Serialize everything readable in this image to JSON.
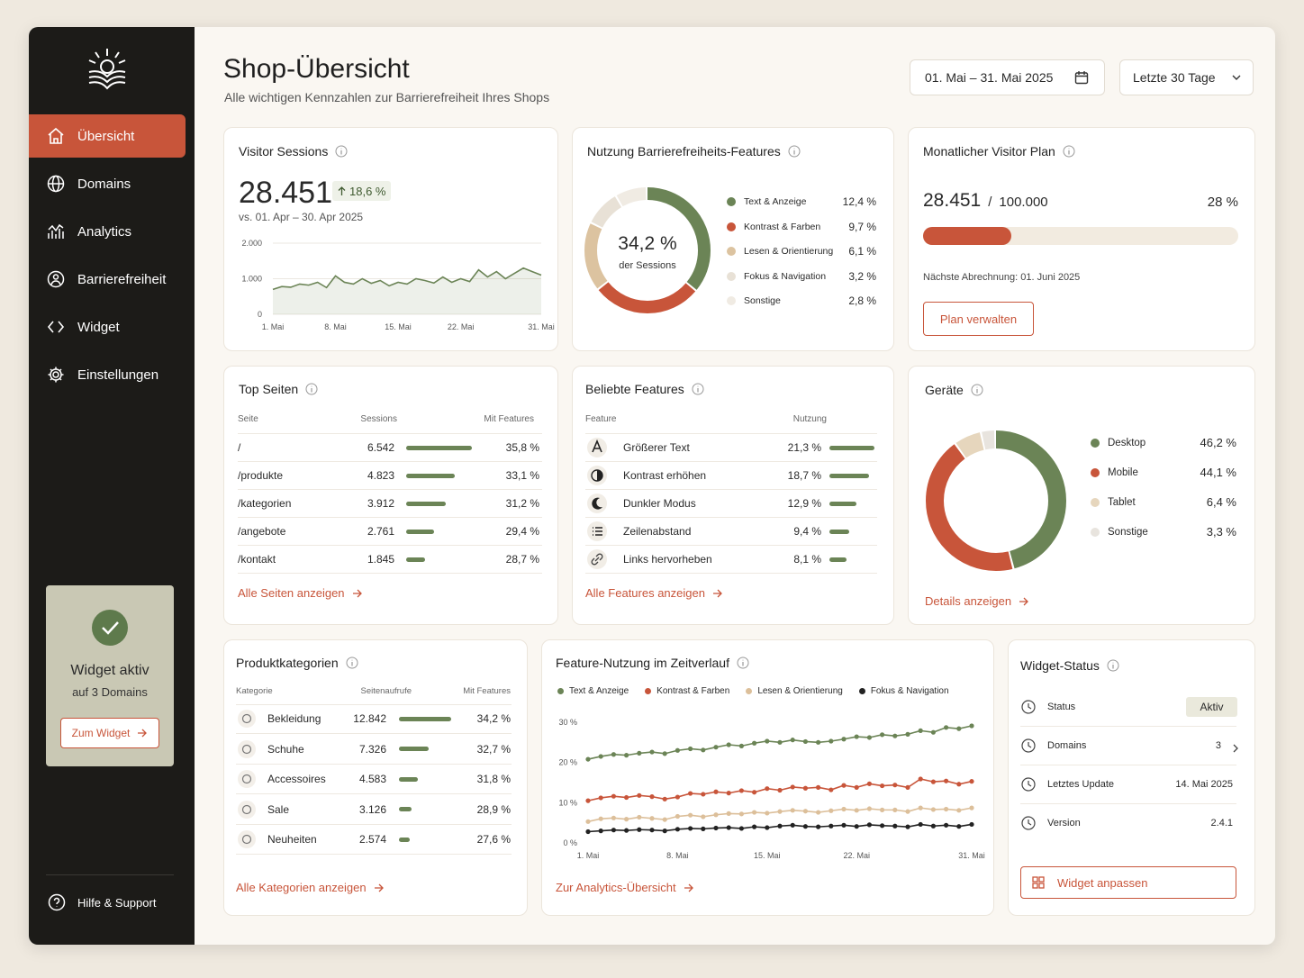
{
  "sidebar": {
    "nav": [
      "Übersicht",
      "Domains",
      "Analytics",
      "Barrierefreiheit",
      "Widget",
      "Einstellungen"
    ],
    "widget_card": {
      "title": "Widget aktiv",
      "subtitle": "auf 3 Domains",
      "button": "Zum Widget"
    },
    "help": "Hilfe & Support"
  },
  "header": {
    "title": "Shop-Übersicht",
    "subtitle": "Alle wichtigen Kennzahlen zur Barrierefreiheit Ihres Shops",
    "date_range": "01. Mai – 31. Mai 2025",
    "period": "Letzte 30 Tage"
  },
  "visitor_sessions": {
    "title": "Visitor Sessions",
    "value": "28.451",
    "change": "18,6 %",
    "comparison": "vs. 01. Apr – 30. Apr 2025",
    "chart_data": {
      "type": "area",
      "categories": [
        "1. Mai",
        null,
        null,
        null,
        null,
        null,
        null,
        "8. Mai",
        null,
        null,
        null,
        null,
        null,
        null,
        "15. Mai",
        null,
        null,
        null,
        null,
        null,
        null,
        "22. Mai",
        null,
        null,
        null,
        null,
        null,
        null,
        null,
        null,
        "31. Mai"
      ],
      "values": [
        700,
        780,
        760,
        850,
        820,
        900,
        750,
        1080,
        900,
        850,
        1000,
        870,
        950,
        800,
        900,
        850,
        1000,
        950,
        880,
        1050,
        900,
        1000,
        920,
        1250,
        1050,
        1200,
        1000,
        1150,
        1300,
        1200,
        1100
      ],
      "color": "#6b8456",
      "ylim": [
        0,
        2000
      ],
      "yticks": [
        0,
        {
          "value": 1000,
          "label": "1.000"
        },
        {
          "value": 2000,
          "label": "2.000"
        }
      ],
      "grid": true
    }
  },
  "feature_usage": {
    "title": "Nutzung Barrierefreiheits-Features",
    "center_value": "34,2 %",
    "center_label": "der Sessions",
    "chart_data": {
      "type": "donut",
      "categories": [
        "Text & Anzeige",
        "Kontrast & Farben",
        "Lesen & Orientierung",
        "Fokus & Navigation",
        "Sonstige"
      ],
      "values": [
        12.4,
        9.7,
        6.1,
        3.2,
        2.8
      ],
      "value_labels": [
        "12,4 %",
        "9,7 %",
        "6,1 %",
        "3,2 %",
        "2,8 %"
      ],
      "colors": [
        "#6b8456",
        "#c8553a",
        "#dcc3a0",
        "#e8e1d6",
        "#f0ebe3"
      ]
    }
  },
  "visitor_plan": {
    "title": "Monatlicher Visitor Plan",
    "used": "28.451",
    "separator": "/",
    "limit": "100.000",
    "chart_data": {
      "type": "progress",
      "values": [
        28
      ],
      "value_labels": [
        "28 %"
      ],
      "xlim": [
        0,
        100
      ],
      "color": "#c8553a"
    },
    "billing": "Nächste Abrechnung: 01. Juni 2025",
    "button": "Plan verwalten"
  },
  "top_pages": {
    "title": "Top Seiten",
    "columns": [
      "Seite",
      "Sessions",
      "Mit Features"
    ],
    "rows": [
      {
        "page": "/",
        "sessions": 6542,
        "sessions_label": "6.542",
        "features": 35.8,
        "features_label": "35,8 %"
      },
      {
        "page": "/produkte",
        "sessions": 4823,
        "sessions_label": "4.823",
        "features": 33.1,
        "features_label": "33,1 %"
      },
      {
        "page": "/kategorien",
        "sessions": 3912,
        "sessions_label": "3.912",
        "features": 31.2,
        "features_label": "31,2 %"
      },
      {
        "page": "/angebote",
        "sessions": 2761,
        "sessions_label": "2.761",
        "features": 29.4,
        "features_label": "29,4 %"
      },
      {
        "page": "/kontakt",
        "sessions": 1845,
        "sessions_label": "1.845",
        "features": 28.7,
        "features_label": "28,7 %"
      }
    ],
    "link": "Alle Seiten anzeigen"
  },
  "popular_features": {
    "title": "Beliebte Features",
    "columns": [
      "Feature",
      "Nutzung"
    ],
    "rows": [
      {
        "name": "Größerer Text",
        "usage": 21.3,
        "usage_label": "21,3 %"
      },
      {
        "name": "Kontrast erhöhen",
        "usage": 18.7,
        "usage_label": "18,7 %"
      },
      {
        "name": "Dunkler Modus",
        "usage": 12.9,
        "usage_label": "12,9 %"
      },
      {
        "name": "Zeilenabstand",
        "usage": 9.4,
        "usage_label": "9,4 %"
      },
      {
        "name": "Links hervorheben",
        "usage": 8.1,
        "usage_label": "8,1 %"
      }
    ],
    "link": "Alle Features anzeigen"
  },
  "devices": {
    "title": "Geräte",
    "chart_data": {
      "type": "donut",
      "categories": [
        "Desktop",
        "Mobile",
        "Tablet",
        "Sonstige"
      ],
      "values": [
        46.2,
        44.1,
        6.4,
        3.3
      ],
      "value_labels": [
        "46,2 %",
        "44,1 %",
        "6,4 %",
        "3,3 %"
      ],
      "colors": [
        "#6b8456",
        "#c8553a",
        "#e6d6bd",
        "#e8e4de"
      ]
    },
    "link": "Details anzeigen"
  },
  "product_categories": {
    "title": "Produktkategorien",
    "columns": [
      "Kategorie",
      "Seitenaufrufe",
      "Mit Features"
    ],
    "rows": [
      {
        "name": "Bekleidung",
        "views": 12842,
        "views_label": "12.842",
        "features": 34.2,
        "features_label": "34,2 %"
      },
      {
        "name": "Schuhe",
        "views": 7326,
        "views_label": "7.326",
        "features": 32.7,
        "features_label": "32,7 %"
      },
      {
        "name": "Accessoires",
        "views": 4583,
        "views_label": "4.583",
        "features": 31.8,
        "features_label": "31,8 %"
      },
      {
        "name": "Sale",
        "views": 3126,
        "views_label": "3.126",
        "features": 28.9,
        "features_label": "28,9 %"
      },
      {
        "name": "Neuheiten",
        "views": 2574,
        "views_label": "2.574",
        "features": 27.6,
        "features_label": "27,6 %"
      }
    ],
    "link": "Alle Kategorien anzeigen"
  },
  "trend": {
    "title": "Feature-Nutzung im Zeitverlauf",
    "chart_data": {
      "type": "line",
      "categories": [
        "1. Mai",
        null,
        null,
        null,
        null,
        null,
        null,
        "8. Mai",
        null,
        null,
        null,
        null,
        null,
        null,
        "15. Mai",
        null,
        null,
        null,
        null,
        null,
        null,
        "22. Mai",
        null,
        null,
        null,
        null,
        null,
        null,
        null,
        null,
        "31. Mai"
      ],
      "series": [
        {
          "name": "Text & Anzeige",
          "color": "#6b8456",
          "values": [
            20.8,
            21.5,
            22,
            21.8,
            22.3,
            22.6,
            22.2,
            23,
            23.4,
            23.1,
            23.8,
            24.4,
            24.1,
            24.8,
            25.3,
            25,
            25.6,
            25.2,
            25,
            25.3,
            25.8,
            26.4,
            26.2,
            26.9,
            26.6,
            27,
            27.9,
            27.5,
            28.7,
            28.4,
            29.1
          ]
        },
        {
          "name": "Kontrast & Farben",
          "color": "#c8553a",
          "values": [
            10.5,
            11.2,
            11.6,
            11.3,
            11.8,
            11.5,
            10.9,
            11.4,
            12.3,
            12.1,
            12.7,
            12.4,
            13,
            12.6,
            13.5,
            13.1,
            13.9,
            13.6,
            13.8,
            13.2,
            14.3,
            13.8,
            14.7,
            14.2,
            14.4,
            13.8,
            15.9,
            15.2,
            15.4,
            14.6,
            15.3
          ]
        },
        {
          "name": "Lesen & Orientierung",
          "color": "#dcbf9a",
          "values": [
            5.3,
            6,
            6.2,
            5.9,
            6.4,
            6.1,
            5.8,
            6.6,
            6.9,
            6.5,
            7,
            7.3,
            7.2,
            7.6,
            7.4,
            7.8,
            8.1,
            7.9,
            7.6,
            8,
            8.4,
            8.1,
            8.5,
            8.2,
            8.2,
            7.8,
            8.7,
            8.3,
            8.4,
            8.1,
            8.7
          ]
        },
        {
          "name": "Fokus & Navigation",
          "color": "#222222",
          "values": [
            2.8,
            3,
            3.2,
            3.1,
            3.3,
            3.2,
            3,
            3.4,
            3.6,
            3.5,
            3.7,
            3.8,
            3.6,
            4,
            3.8,
            4.2,
            4.4,
            4.1,
            4,
            4.2,
            4.4,
            4.1,
            4.5,
            4.3,
            4.2,
            4,
            4.6,
            4.2,
            4.4,
            4.1,
            4.6
          ]
        }
      ],
      "ylim": [
        0,
        30
      ],
      "yticks": [
        {
          "value": 0,
          "label": "0 %"
        },
        {
          "value": 10,
          "label": "10 %"
        },
        {
          "value": 20,
          "label": "20 %"
        },
        {
          "value": 30,
          "label": "30 %"
        }
      ],
      "markers": true
    },
    "link": "Zur Analytics-Übersicht"
  },
  "widget_status": {
    "title": "Widget-Status",
    "rows": [
      {
        "label": "Status",
        "value": "Aktiv"
      },
      {
        "label": "Domains",
        "value": "3"
      },
      {
        "label": "Letztes Update",
        "value": "14. Mai 2025"
      },
      {
        "label": "Version",
        "value": "2.4.1"
      }
    ],
    "button": "Widget anpassen"
  }
}
